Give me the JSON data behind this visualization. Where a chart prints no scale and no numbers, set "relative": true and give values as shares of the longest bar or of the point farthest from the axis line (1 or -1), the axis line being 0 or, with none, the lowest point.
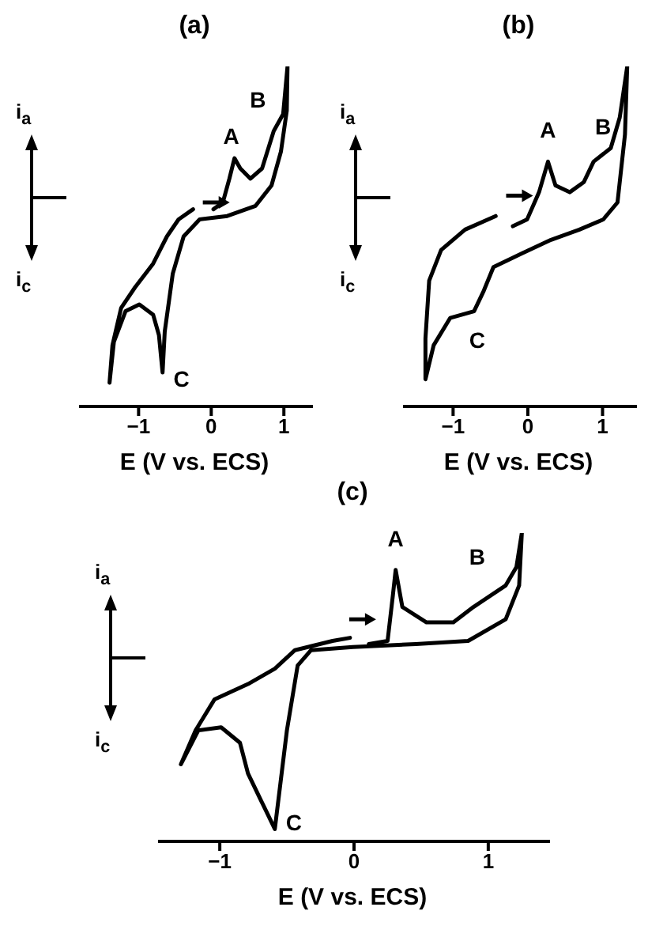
{
  "chart_data": [
    {
      "type": "line",
      "title": "(a)",
      "xlabel": "E (V vs. ECS)",
      "relative": true,
      "xlim": [
        -1.82,
        1.4
      ],
      "xticks": [
        -1,
        0,
        1
      ],
      "series": [
        {
          "color": "#000000",
          "x": [
            0.03,
            0.16,
            0.25,
            0.32,
            0.4,
            0.54,
            0.7,
            0.86,
            0.99,
            1.05,
            1.04,
            0.96,
            0.83,
            0.61,
            0.22,
            -0.16,
            -0.38,
            -0.53,
            -0.64,
            -0.67,
            -0.72,
            -0.8,
            -0.99,
            -1.18,
            -1.34,
            -1.4,
            -1.36,
            -1.24,
            -1.05,
            -0.8,
            -0.61,
            -0.45,
            -0.25
          ],
          "values": [
            0.58,
            0.6,
            0.67,
            0.73,
            0.7,
            0.67,
            0.7,
            0.81,
            0.86,
            1.0,
            0.87,
            0.75,
            0.65,
            0.59,
            0.56,
            0.55,
            0.5,
            0.39,
            0.22,
            0.1,
            0.21,
            0.27,
            0.3,
            0.28,
            0.19,
            0.07,
            0.18,
            0.29,
            0.35,
            0.42,
            0.5,
            0.55,
            0.58
          ]
        }
      ],
      "annotations": [
        "i$_{a}$",
        "i$_{c}$",
        {
          "text": "A",
          "x": 0.32,
          "y": 0.73
        },
        {
          "text": "B",
          "x": 0.86,
          "y": 0.81
        },
        {
          "text": "C",
          "x": -0.67,
          "y": 0.1
        }
      ]
    },
    {
      "type": "line",
      "title": "(b)",
      "xlabel": "E (V vs. ECS)",
      "relative": true,
      "xlim": [
        -1.67,
        1.46
      ],
      "xticks": [
        -1,
        0,
        1
      ],
      "series": [
        {
          "color": "#000000",
          "x": [
            -0.2,
            -0.01,
            0.15,
            0.27,
            0.37,
            0.56,
            0.75,
            0.88,
            1.11,
            1.23,
            1.33,
            1.3,
            1.2,
            1.01,
            0.69,
            0.31,
            -0.08,
            -0.46,
            -0.59,
            -0.72,
            -1.04,
            -1.26,
            -1.37,
            -1.37,
            -1.32,
            -1.16,
            -0.84,
            -0.43
          ],
          "values": [
            0.53,
            0.55,
            0.63,
            0.72,
            0.65,
            0.63,
            0.66,
            0.72,
            0.76,
            0.85,
            1.0,
            0.8,
            0.6,
            0.55,
            0.52,
            0.49,
            0.45,
            0.41,
            0.34,
            0.28,
            0.26,
            0.18,
            0.08,
            0.2,
            0.37,
            0.46,
            0.52,
            0.56
          ]
        }
      ],
      "annotations": [
        "i$_{a}$",
        "i$_{c}$",
        {
          "text": "A",
          "x": 0.27,
          "y": 0.72
        },
        {
          "text": "B",
          "x": 0.88,
          "y": 0.72
        },
        {
          "text": "C",
          "x": -0.72,
          "y": 0.28
        }
      ]
    },
    {
      "type": "line",
      "title": "(c)",
      "xlabel": "E (V vs. ECS)",
      "relative": true,
      "xlim": [
        -1.46,
        1.46
      ],
      "xticks": [
        -1,
        0,
        1
      ],
      "series": [
        {
          "color": "#000000",
          "x": [
            0.11,
            0.25,
            0.29,
            0.31,
            0.36,
            0.54,
            0.74,
            0.89,
            1.13,
            1.21,
            1.25,
            1.23,
            1.13,
            0.85,
            0.46,
            -0.01,
            -0.32,
            -0.42,
            -0.5,
            -0.59,
            -0.69,
            -0.79,
            -0.85,
            -0.99,
            -1.16,
            -1.29,
            -1.18,
            -1.04,
            -0.79,
            -0.59,
            -0.44,
            -0.16,
            -0.03
          ],
          "values": [
            0.64,
            0.65,
            0.8,
            0.88,
            0.76,
            0.71,
            0.71,
            0.76,
            0.83,
            0.89,
            1.0,
            0.83,
            0.72,
            0.65,
            0.64,
            0.63,
            0.62,
            0.57,
            0.36,
            0.04,
            0.13,
            0.22,
            0.32,
            0.37,
            0.36,
            0.25,
            0.36,
            0.46,
            0.51,
            0.56,
            0.62,
            0.65,
            0.66
          ]
        }
      ],
      "annotations": [
        "i$_{a}$",
        "i$_{c}$",
        {
          "text": "A",
          "x": 0.31,
          "y": 0.88
        },
        {
          "text": "B",
          "x": 1.13,
          "y": 0.83
        },
        {
          "text": "C",
          "x": -0.59,
          "y": 0.04
        }
      ]
    }
  ]
}
